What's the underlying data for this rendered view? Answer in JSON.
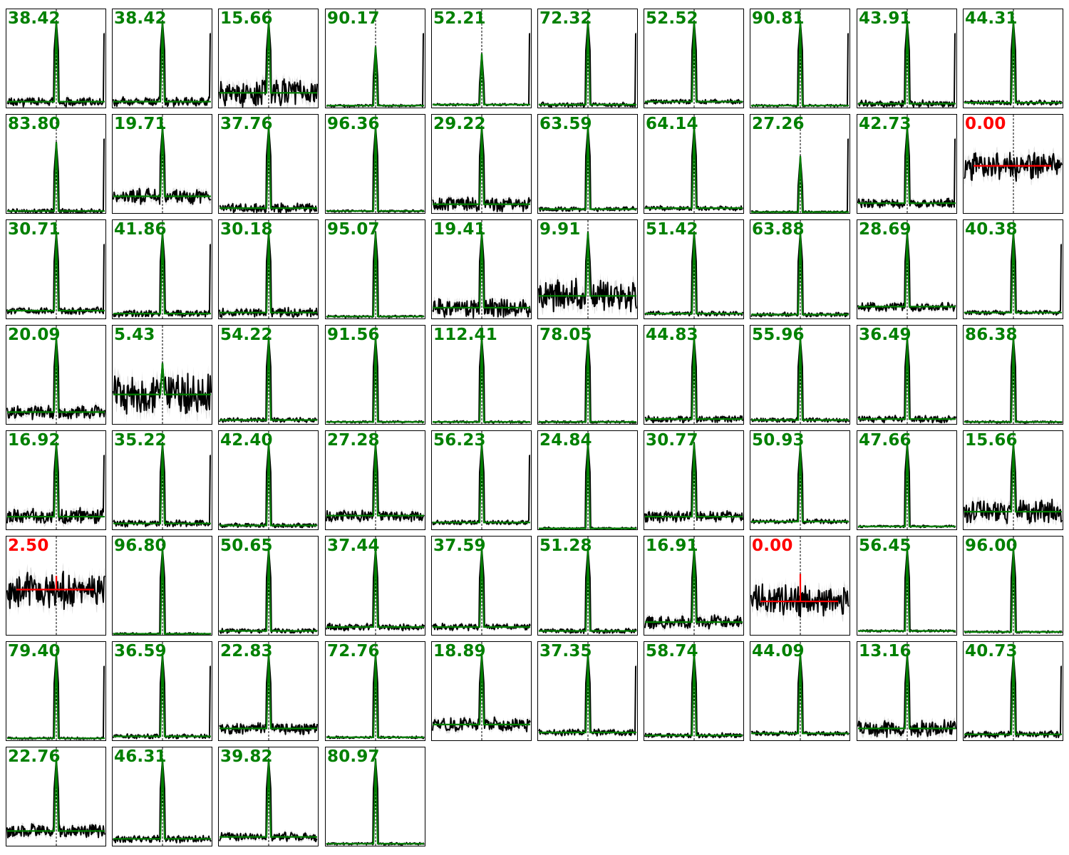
{
  "colors": {
    "detected": "#008000",
    "undetected": "#ff0000",
    "data": "#000000",
    "uncertainty": "#c8c8c8",
    "marker": "#000000"
  },
  "chart_data": {
    "type": "line",
    "layout": "grid of small-multiple spectral line panels, 10 columns x 8 rows",
    "grid": false,
    "panels": [
      {
        "label": "38.42",
        "detected": true,
        "noise": 0.04,
        "baseline": 0.06,
        "peak": 0.88,
        "edge_spike": true
      },
      {
        "label": "38.42",
        "detected": true,
        "noise": 0.04,
        "baseline": 0.06,
        "peak": 0.88,
        "edge_spike": true
      },
      {
        "label": "15.66",
        "detected": true,
        "noise": 0.12,
        "baseline": 0.15,
        "peak": 0.88,
        "edge_spike": false
      },
      {
        "label": "90.17",
        "detected": true,
        "noise": 0.01,
        "baseline": 0.02,
        "peak": 0.62,
        "edge_spike": true
      },
      {
        "label": "52.21",
        "detected": true,
        "noise": 0.01,
        "baseline": 0.03,
        "peak": 0.55,
        "edge_spike": true
      },
      {
        "label": "72.32",
        "detected": true,
        "noise": 0.02,
        "baseline": 0.03,
        "peak": 0.88,
        "edge_spike": true
      },
      {
        "label": "52.52",
        "detected": true,
        "noise": 0.02,
        "baseline": 0.06,
        "peak": 0.88,
        "edge_spike": false
      },
      {
        "label": "90.81",
        "detected": true,
        "noise": 0.01,
        "baseline": 0.02,
        "peak": 0.88,
        "edge_spike": true
      },
      {
        "label": "43.91",
        "detected": true,
        "noise": 0.03,
        "baseline": 0.04,
        "peak": 0.88,
        "edge_spike": true
      },
      {
        "label": "44.31",
        "detected": true,
        "noise": 0.02,
        "baseline": 0.05,
        "peak": 0.88,
        "edge_spike": false
      },
      {
        "label": "83.80",
        "detected": true,
        "noise": 0.02,
        "baseline": 0.02,
        "peak": 0.72,
        "edge_spike": true
      },
      {
        "label": "19.71",
        "detected": true,
        "noise": 0.07,
        "baseline": 0.17,
        "peak": 0.88,
        "edge_spike": false
      },
      {
        "label": "37.76",
        "detected": true,
        "noise": 0.04,
        "baseline": 0.05,
        "peak": 0.88,
        "edge_spike": false
      },
      {
        "label": "96.36",
        "detected": true,
        "noise": 0.01,
        "baseline": 0.02,
        "peak": 0.88,
        "edge_spike": false
      },
      {
        "label": "29.22",
        "detected": true,
        "noise": 0.06,
        "baseline": 0.09,
        "peak": 0.88,
        "edge_spike": false
      },
      {
        "label": "63.59",
        "detected": true,
        "noise": 0.02,
        "baseline": 0.04,
        "peak": 0.88,
        "edge_spike": false
      },
      {
        "label": "64.14",
        "detected": true,
        "noise": 0.02,
        "baseline": 0.05,
        "peak": 0.88,
        "edge_spike": false
      },
      {
        "label": "27.26",
        "detected": true,
        "noise": 0.01,
        "baseline": 0.01,
        "peak": 0.58,
        "edge_spike": true
      },
      {
        "label": "42.73",
        "detected": true,
        "noise": 0.04,
        "baseline": 0.1,
        "peak": 0.88,
        "edge_spike": true
      },
      {
        "label": "0.00",
        "detected": false,
        "noise": 0.12,
        "baseline": 0.48,
        "peak": 0,
        "edge_spike": false
      },
      {
        "label": "30.71",
        "detected": true,
        "noise": 0.03,
        "baseline": 0.08,
        "peak": 0.88,
        "edge_spike": true
      },
      {
        "label": "41.86",
        "detected": true,
        "noise": 0.03,
        "baseline": 0.05,
        "peak": 0.88,
        "edge_spike": true
      },
      {
        "label": "30.18",
        "detected": true,
        "noise": 0.04,
        "baseline": 0.06,
        "peak": 0.88,
        "edge_spike": false
      },
      {
        "label": "95.07",
        "detected": true,
        "noise": 0.01,
        "baseline": 0.02,
        "peak": 0.88,
        "edge_spike": false
      },
      {
        "label": "19.41",
        "detected": true,
        "noise": 0.08,
        "baseline": 0.11,
        "peak": 0.88,
        "edge_spike": false
      },
      {
        "label": "9.91",
        "detected": true,
        "noise": 0.14,
        "baseline": 0.23,
        "peak": 0.88,
        "edge_spike": false
      },
      {
        "label": "51.42",
        "detected": true,
        "noise": 0.02,
        "baseline": 0.05,
        "peak": 0.88,
        "edge_spike": false
      },
      {
        "label": "63.88",
        "detected": true,
        "noise": 0.02,
        "baseline": 0.04,
        "peak": 0.88,
        "edge_spike": false
      },
      {
        "label": "28.69",
        "detected": true,
        "noise": 0.04,
        "baseline": 0.12,
        "peak": 0.88,
        "edge_spike": false
      },
      {
        "label": "40.38",
        "detected": true,
        "noise": 0.02,
        "baseline": 0.06,
        "peak": 0.88,
        "edge_spike": true
      },
      {
        "label": "20.09",
        "detected": true,
        "noise": 0.06,
        "baseline": 0.12,
        "peak": 0.88,
        "edge_spike": false
      },
      {
        "label": "5.43",
        "detected": true,
        "noise": 0.18,
        "baseline": 0.3,
        "peak": 0.62,
        "edge_spike": false
      },
      {
        "label": "54.22",
        "detected": true,
        "noise": 0.02,
        "baseline": 0.04,
        "peak": 0.88,
        "edge_spike": false
      },
      {
        "label": "91.56",
        "detected": true,
        "noise": 0.01,
        "baseline": 0.02,
        "peak": 0.88,
        "edge_spike": false
      },
      {
        "label": "112.41",
        "detected": true,
        "noise": 0.01,
        "baseline": 0.02,
        "peak": 0.88,
        "edge_spike": false
      },
      {
        "label": "78.05",
        "detected": true,
        "noise": 0.01,
        "baseline": 0.02,
        "peak": 0.88,
        "edge_spike": false
      },
      {
        "label": "44.83",
        "detected": true,
        "noise": 0.03,
        "baseline": 0.05,
        "peak": 0.88,
        "edge_spike": false
      },
      {
        "label": "55.96",
        "detected": true,
        "noise": 0.02,
        "baseline": 0.04,
        "peak": 0.88,
        "edge_spike": false
      },
      {
        "label": "36.49",
        "detected": true,
        "noise": 0.03,
        "baseline": 0.05,
        "peak": 0.88,
        "edge_spike": false
      },
      {
        "label": "86.38",
        "detected": true,
        "noise": 0.01,
        "baseline": 0.02,
        "peak": 0.88,
        "edge_spike": false
      },
      {
        "label": "16.92",
        "detected": true,
        "noise": 0.07,
        "baseline": 0.13,
        "peak": 0.88,
        "edge_spike": true
      },
      {
        "label": "35.22",
        "detected": true,
        "noise": 0.03,
        "baseline": 0.06,
        "peak": 0.88,
        "edge_spike": true
      },
      {
        "label": "42.40",
        "detected": true,
        "noise": 0.02,
        "baseline": 0.04,
        "peak": 0.88,
        "edge_spike": false
      },
      {
        "label": "27.28",
        "detected": true,
        "noise": 0.05,
        "baseline": 0.14,
        "peak": 0.88,
        "edge_spike": false
      },
      {
        "label": "56.23",
        "detected": true,
        "noise": 0.02,
        "baseline": 0.07,
        "peak": 0.88,
        "edge_spike": true
      },
      {
        "label": "24.84",
        "detected": true,
        "noise": 0.01,
        "baseline": 0.01,
        "peak": 0.88,
        "edge_spike": false
      },
      {
        "label": "30.77",
        "detected": true,
        "noise": 0.05,
        "baseline": 0.13,
        "peak": 0.88,
        "edge_spike": false
      },
      {
        "label": "50.93",
        "detected": true,
        "noise": 0.02,
        "baseline": 0.08,
        "peak": 0.86,
        "edge_spike": false
      },
      {
        "label": "47.66",
        "detected": true,
        "noise": 0.01,
        "baseline": 0.03,
        "peak": 0.88,
        "edge_spike": false
      },
      {
        "label": "15.66",
        "detected": true,
        "noise": 0.1,
        "baseline": 0.18,
        "peak": 0.88,
        "edge_spike": false
      },
      {
        "label": "2.50",
        "detected": false,
        "noise": 0.16,
        "baseline": 0.46,
        "peak": 0.14,
        "edge_spike": false
      },
      {
        "label": "96.80",
        "detected": true,
        "noise": 0.01,
        "baseline": 0.01,
        "peak": 0.88,
        "edge_spike": false
      },
      {
        "label": "50.65",
        "detected": true,
        "noise": 0.02,
        "baseline": 0.04,
        "peak": 0.88,
        "edge_spike": false
      },
      {
        "label": "37.44",
        "detected": true,
        "noise": 0.03,
        "baseline": 0.08,
        "peak": 0.88,
        "edge_spike": false
      },
      {
        "label": "37.59",
        "detected": true,
        "noise": 0.03,
        "baseline": 0.08,
        "peak": 0.88,
        "edge_spike": false
      },
      {
        "label": "51.28",
        "detected": true,
        "noise": 0.02,
        "baseline": 0.04,
        "peak": 0.88,
        "edge_spike": false
      },
      {
        "label": "16.91",
        "detected": true,
        "noise": 0.06,
        "baseline": 0.13,
        "peak": 0.88,
        "edge_spike": false
      },
      {
        "label": "0.00",
        "detected": false,
        "noise": 0.14,
        "baseline": 0.34,
        "peak": 0.28,
        "edge_spike": false
      },
      {
        "label": "56.45",
        "detected": true,
        "noise": 0.01,
        "baseline": 0.04,
        "peak": 0.88,
        "edge_spike": false
      },
      {
        "label": "96.00",
        "detected": true,
        "noise": 0.01,
        "baseline": 0.03,
        "peak": 0.88,
        "edge_spike": false
      },
      {
        "label": "79.40",
        "detected": true,
        "noise": 0.01,
        "baseline": 0.02,
        "peak": 0.88,
        "edge_spike": true
      },
      {
        "label": "36.59",
        "detected": true,
        "noise": 0.02,
        "baseline": 0.04,
        "peak": 0.88,
        "edge_spike": true
      },
      {
        "label": "22.83",
        "detected": true,
        "noise": 0.05,
        "baseline": 0.12,
        "peak": 0.88,
        "edge_spike": false
      },
      {
        "label": "72.76",
        "detected": true,
        "noise": 0.01,
        "baseline": 0.03,
        "peak": 0.88,
        "edge_spike": false
      },
      {
        "label": "18.89",
        "detected": true,
        "noise": 0.06,
        "baseline": 0.16,
        "peak": 0.88,
        "edge_spike": false
      },
      {
        "label": "37.35",
        "detected": true,
        "noise": 0.03,
        "baseline": 0.08,
        "peak": 0.88,
        "edge_spike": true
      },
      {
        "label": "58.74",
        "detected": true,
        "noise": 0.02,
        "baseline": 0.05,
        "peak": 0.88,
        "edge_spike": false
      },
      {
        "label": "44.09",
        "detected": true,
        "noise": 0.02,
        "baseline": 0.07,
        "peak": 0.88,
        "edge_spike": false
      },
      {
        "label": "13.16",
        "detected": true,
        "noise": 0.08,
        "baseline": 0.12,
        "peak": 0.88,
        "edge_spike": false
      },
      {
        "label": "40.73",
        "detected": true,
        "noise": 0.03,
        "baseline": 0.06,
        "peak": 0.88,
        "edge_spike": true
      },
      {
        "label": "22.76",
        "detected": true,
        "noise": 0.06,
        "baseline": 0.15,
        "peak": 0.88,
        "edge_spike": false
      },
      {
        "label": "46.31",
        "detected": true,
        "noise": 0.03,
        "baseline": 0.07,
        "peak": 0.88,
        "edge_spike": false
      },
      {
        "label": "39.82",
        "detected": true,
        "noise": 0.04,
        "baseline": 0.09,
        "peak": 0.88,
        "edge_spike": false
      },
      {
        "label": "80.97",
        "detected": true,
        "noise": 0.01,
        "baseline": 0.02,
        "peak": 0.88,
        "edge_spike": false
      }
    ]
  }
}
